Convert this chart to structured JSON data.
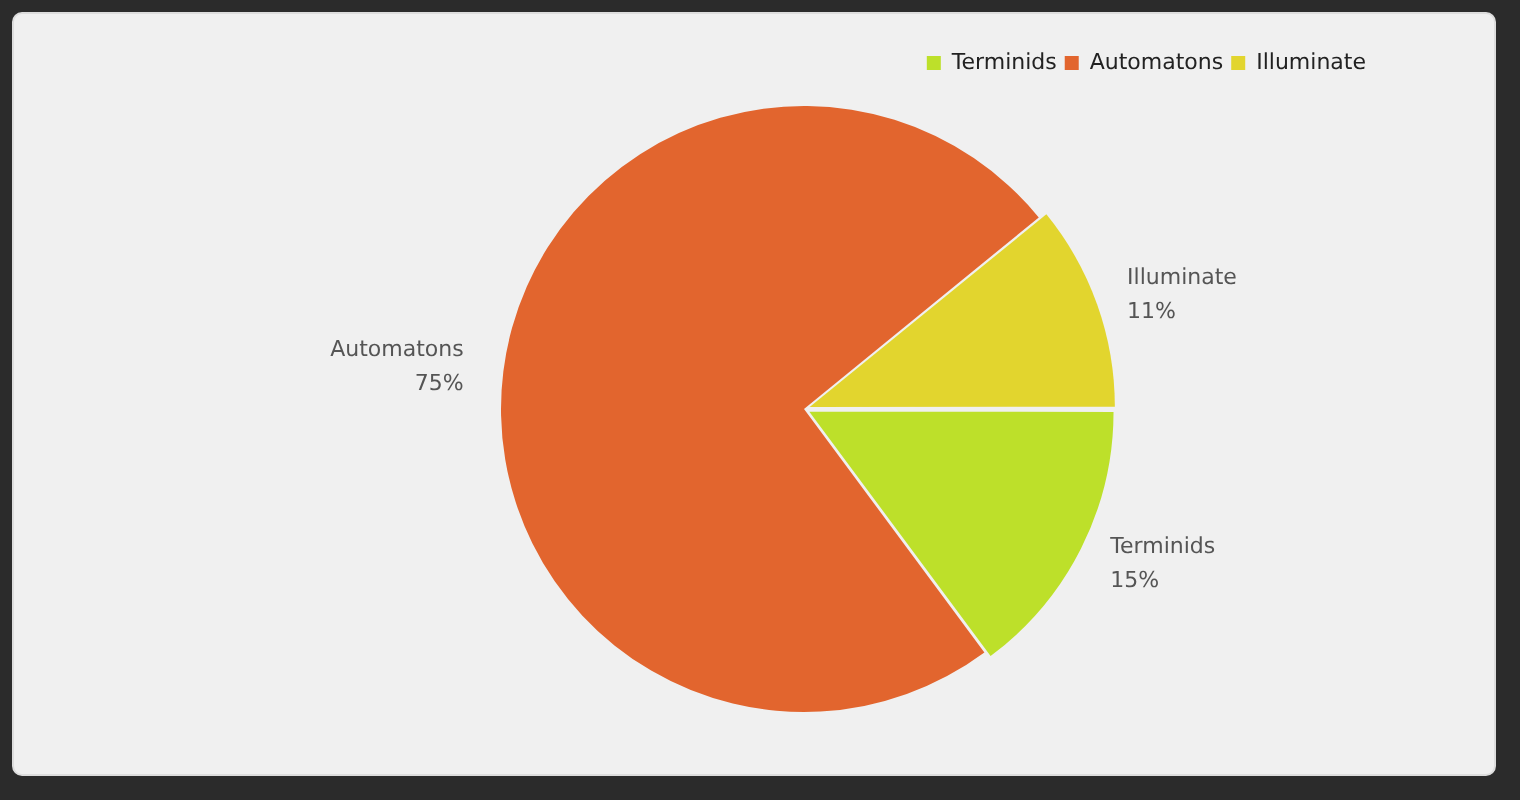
{
  "chart_data": {
    "type": "pie",
    "categories": [
      "Terminids",
      "Automatons",
      "Illuminate"
    ],
    "values": [
      15,
      75,
      11
    ],
    "value_labels": [
      "15%",
      "75%",
      "11%"
    ],
    "colors": [
      "#bde02a",
      "#e2652e",
      "#e2d52e"
    ],
    "legend": "top right"
  }
}
